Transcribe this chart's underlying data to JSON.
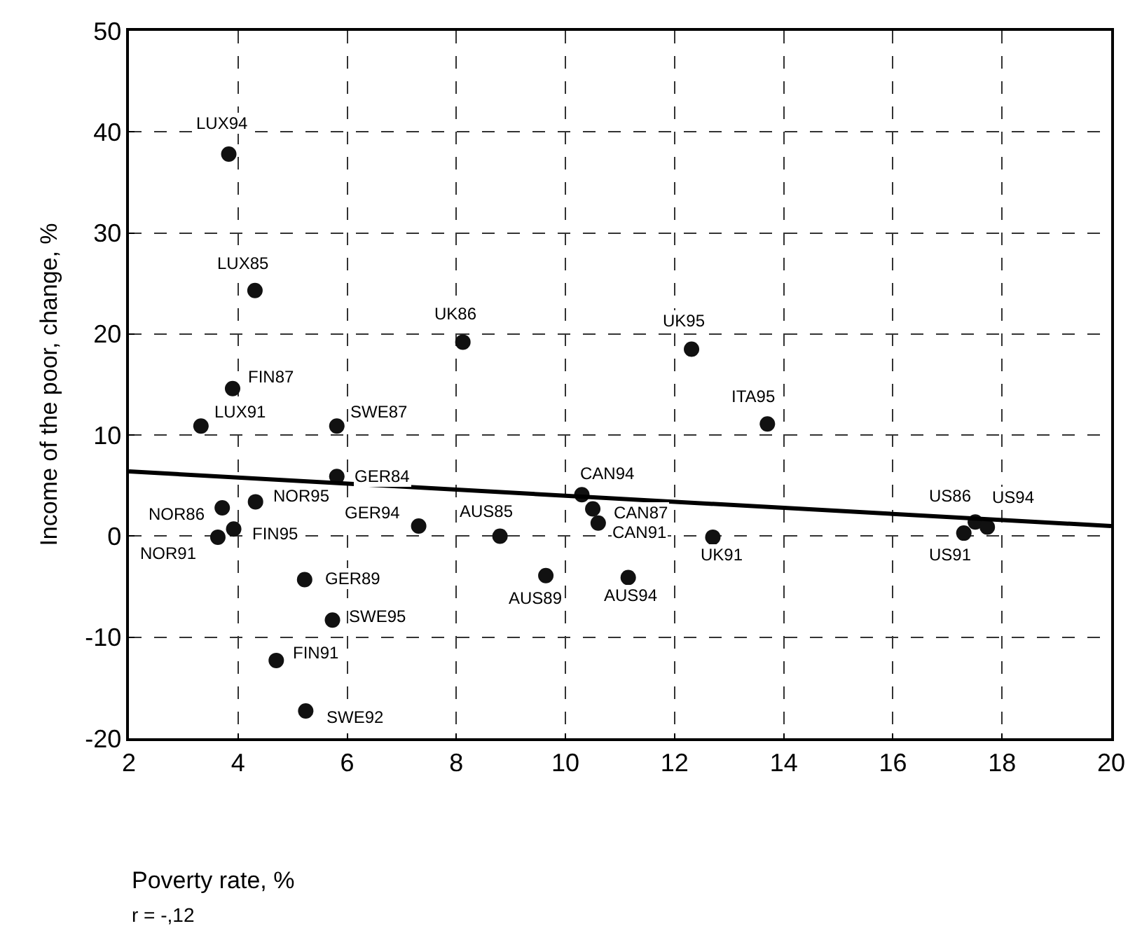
{
  "chart_data": {
    "type": "scatter",
    "xlabel": "Poverty rate, %",
    "ylabel": "Income of the poor, change, %",
    "series": [
      {
        "marker": "circle",
        "color": "#111111",
        "x": [
          3.83,
          4.31,
          8.12,
          3.9,
          3.32,
          5.81,
          5.81,
          4.32,
          3.71,
          3.92,
          3.63,
          7.31,
          8.8,
          10.3,
          10.5,
          10.6,
          5.22,
          9.64,
          11.15,
          5.73,
          4.7,
          5.24,
          12.31,
          13.7,
          12.7,
          17.51,
          17.73,
          17.3
        ],
        "values": [
          37.8,
          24.3,
          19.2,
          14.6,
          10.9,
          10.9,
          5.9,
          3.4,
          2.8,
          0.7,
          -0.1,
          1.0,
          0.0,
          4.1,
          2.7,
          1.3,
          -4.3,
          -3.9,
          -4.1,
          -8.3,
          -12.3,
          -17.3,
          18.5,
          11.1,
          -0.1,
          1.4,
          0.9,
          0.3
        ]
      },
      {
        "type": "line",
        "marker": "none",
        "color": "#000000",
        "x": [
          2,
          20
        ],
        "values": [
          6.4,
          1.0
        ]
      }
    ],
    "line_style": "solid",
    "grid": true,
    "xlim": [
      2,
      20
    ],
    "xticks": [
      2,
      4,
      6,
      8,
      10,
      12,
      14,
      16,
      18,
      20
    ],
    "ylim": [
      -20,
      50
    ],
    "yticks": [
      -20,
      -10,
      0,
      10,
      20,
      30,
      40,
      50
    ],
    "annotations": [
      {
        "text": "LUX94",
        "x": 3.83,
        "y": 37.8
      },
      {
        "text": "LUX85",
        "x": 4.31,
        "y": 24.3
      },
      {
        "text": "UK86",
        "x": 8.12,
        "y": 19.2
      },
      {
        "text": "FIN87",
        "x": 3.9,
        "y": 14.6
      },
      {
        "text": "LUX91",
        "x": 3.32,
        "y": 10.9
      },
      {
        "text": "SWE87",
        "x": 5.81,
        "y": 10.9
      },
      {
        "text": "GER84",
        "x": 5.81,
        "y": 5.9
      },
      {
        "text": "NOR95",
        "x": 4.32,
        "y": 3.4
      },
      {
        "text": "NOR86",
        "x": 3.71,
        "y": 2.8
      },
      {
        "text": "FIN95",
        "x": 3.92,
        "y": 0.7
      },
      {
        "text": "NOR91",
        "x": 3.63,
        "y": -0.1
      },
      {
        "text": "GER94",
        "x": 7.31,
        "y": 1.0
      },
      {
        "text": "AUS85",
        "x": 8.8,
        "y": 0.0
      },
      {
        "text": "CAN94",
        "x": 10.3,
        "y": 4.1
      },
      {
        "text": "CAN87",
        "x": 10.5,
        "y": 2.7
      },
      {
        "text": "CAN91",
        "x": 10.6,
        "y": 1.3
      },
      {
        "text": "GER89",
        "x": 5.22,
        "y": -4.3
      },
      {
        "text": "AUS89",
        "x": 9.64,
        "y": -3.9
      },
      {
        "text": "AUS94",
        "x": 11.15,
        "y": -4.1
      },
      {
        "text": "SWE95",
        "x": 5.73,
        "y": -8.3
      },
      {
        "text": "FIN91",
        "x": 4.7,
        "y": -12.3
      },
      {
        "text": "SWE92",
        "x": 5.24,
        "y": -17.3
      },
      {
        "text": "UK95",
        "x": 12.31,
        "y": 18.5
      },
      {
        "text": "ITA95",
        "x": 13.7,
        "y": 11.1
      },
      {
        "text": "UK91",
        "x": 12.7,
        "y": -0.1
      },
      {
        "text": "US86",
        "x": 17.51,
        "y": 1.4
      },
      {
        "text": "US94",
        "x": 17.73,
        "y": 0.9
      },
      {
        "text": "US91",
        "x": 17.3,
        "y": 0.3
      },
      "r = -,12"
    ]
  }
}
